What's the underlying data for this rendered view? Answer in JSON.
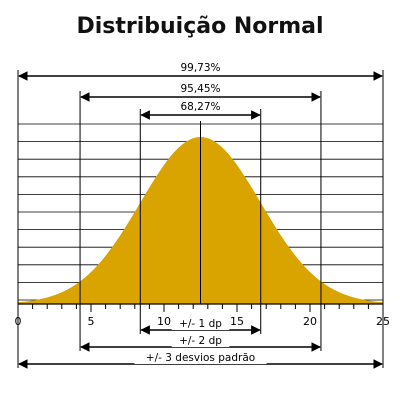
{
  "chart_data": {
    "type": "area",
    "title": "Distribuição Normal",
    "mean": 12.5,
    "sd": 4.125,
    "xlim": [
      0,
      25
    ],
    "x_ticks": [
      0,
      5,
      10,
      15,
      20,
      25
    ],
    "x_tick_labels": [
      "0",
      "5",
      "10",
      "15",
      "20",
      "25"
    ],
    "grid": true,
    "fill_color": "#D9A300",
    "ranges": [
      {
        "label": "99,73%",
        "from": 0,
        "to": 25,
        "position": "above"
      },
      {
        "label": "95,45%",
        "from": 4.25,
        "to": 20.75,
        "position": "above"
      },
      {
        "label": "68,27%",
        "from": 8.375,
        "to": 16.625,
        "position": "above"
      },
      {
        "label": "+/- 1 dp",
        "from": 8.375,
        "to": 16.625,
        "position": "below"
      },
      {
        "label": "+/- 2 dp",
        "from": 4.25,
        "to": 20.75,
        "position": "below"
      },
      {
        "label": "+/- 3 desvios padrão",
        "from": 0,
        "to": 25,
        "position": "below"
      }
    ]
  }
}
